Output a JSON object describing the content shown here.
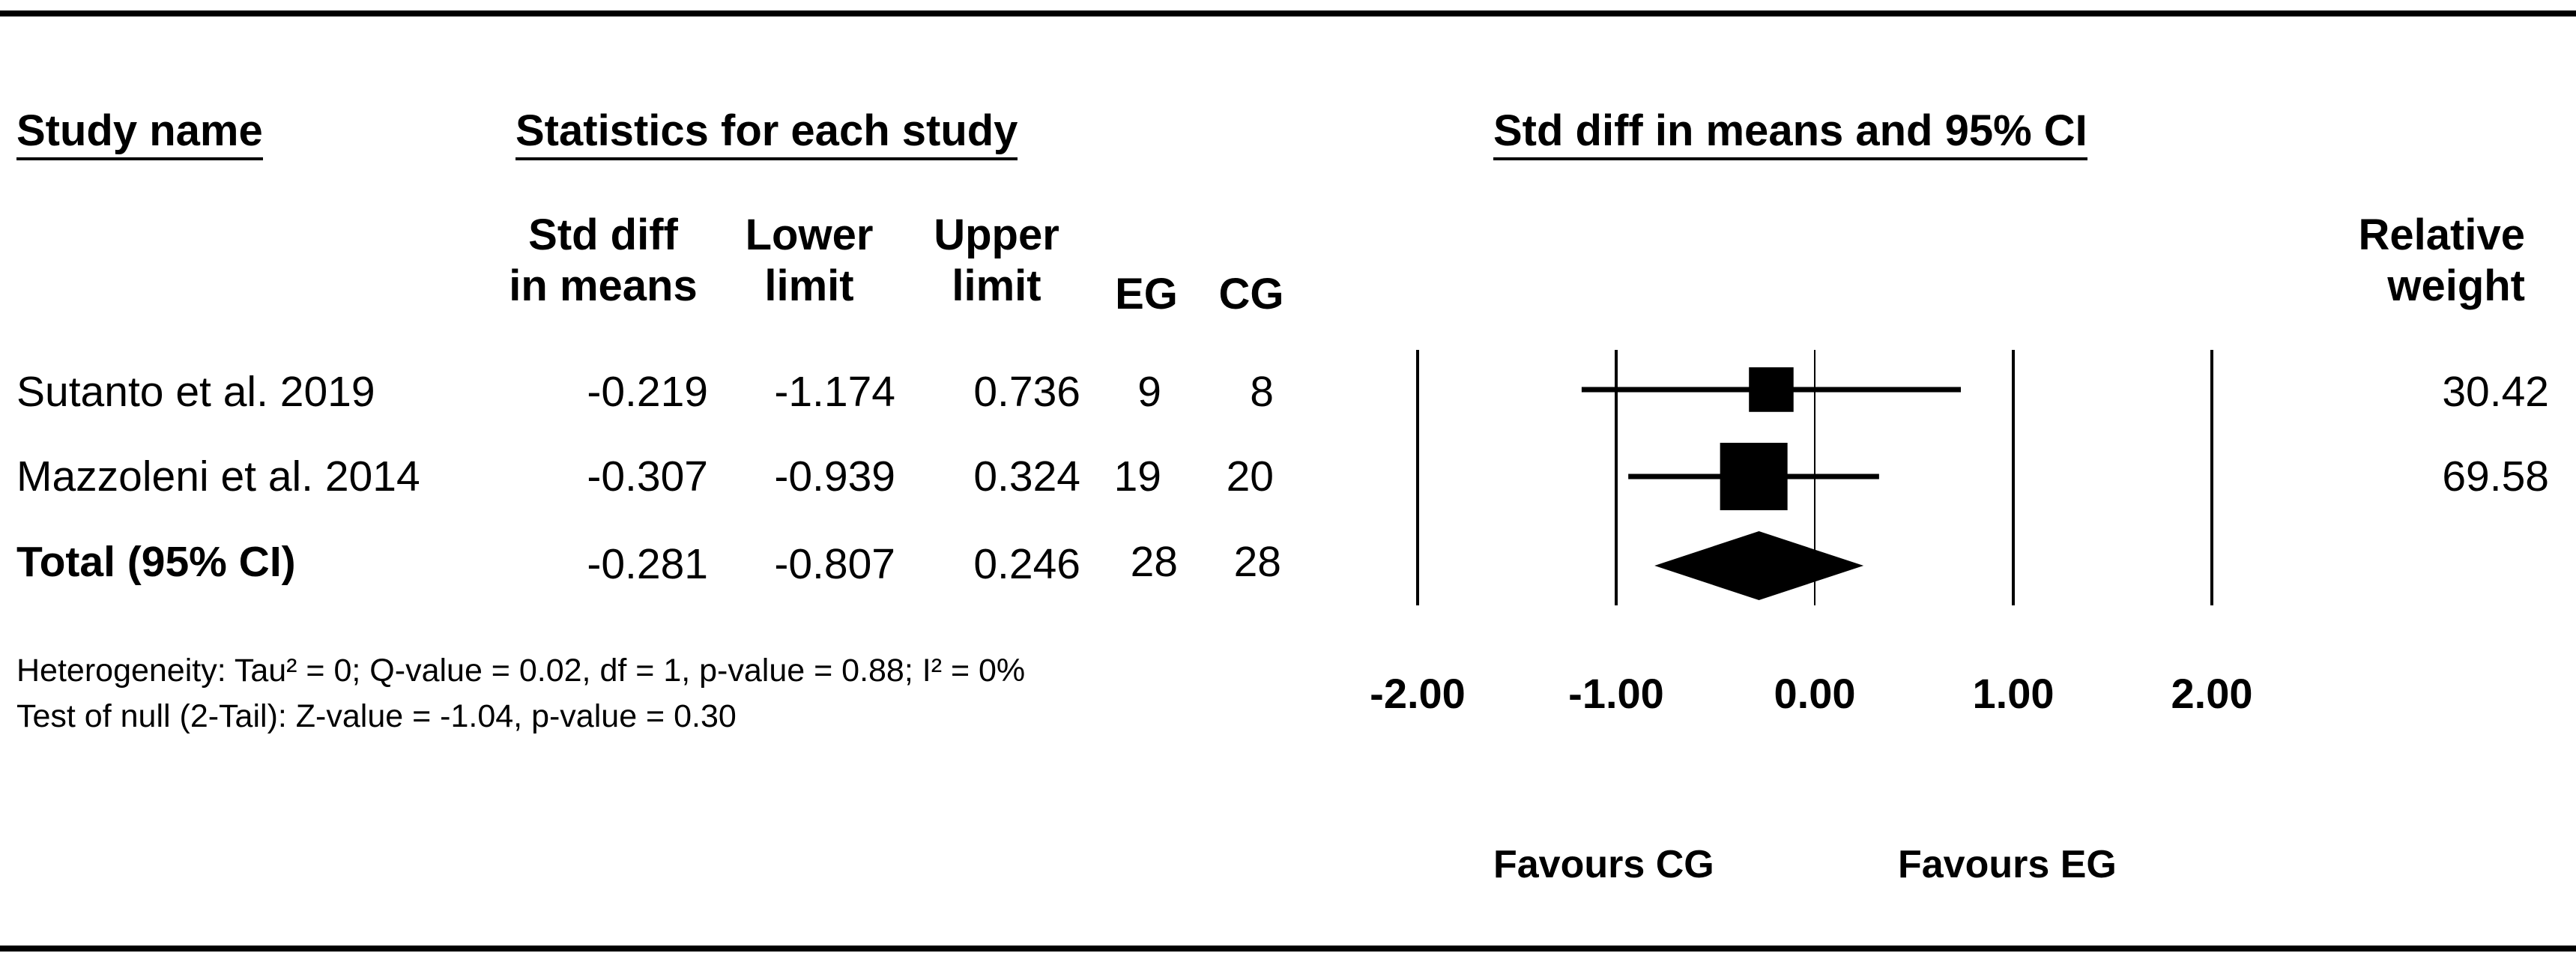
{
  "chart_data": {
    "type": "forest",
    "headers": {
      "study_name": "Study name",
      "statistics": "Statistics for each study",
      "plot_title": "Std diff in means and 95% CI",
      "col_smd": [
        "Std diff",
        "in means"
      ],
      "col_lower": [
        "Lower",
        "limit"
      ],
      "col_upper": [
        "Upper",
        "limit"
      ],
      "col_eg": "EG",
      "col_cg": "CG",
      "col_weight": [
        "Relative",
        "weight"
      ]
    },
    "studies": [
      {
        "name": "Sutanto et al. 2019",
        "smd": "-0.219",
        "lower": "-1.174",
        "upper": "0.736",
        "eg": "9",
        "cg": "8",
        "weight": "30.42"
      },
      {
        "name": "Mazzoleni et al. 2014",
        "smd": "-0.307",
        "lower": "-0.939",
        "upper": "0.324",
        "eg": "19",
        "cg": "20",
        "weight": "69.58"
      }
    ],
    "total": {
      "name": "Total (95% CI)",
      "smd": "-0.281",
      "lower": "-0.807",
      "upper": "0.246",
      "eg": "28",
      "cg": "28"
    },
    "x_ticks": [
      "-2.00",
      "-1.00",
      "0.00",
      "1.00",
      "2.00"
    ],
    "xlim": [
      -2,
      2
    ],
    "favours_left": "Favours CG",
    "favours_right": "Favours EG",
    "notes": {
      "heterogeneity": "Heterogeneity: Tau² = 0; Q-value = 0.02, df = 1, p-value = 0.88; I² = 0%",
      "test_null": "Test of null (2-Tail): Z-value = -1.04, p-value = 0.30"
    }
  }
}
